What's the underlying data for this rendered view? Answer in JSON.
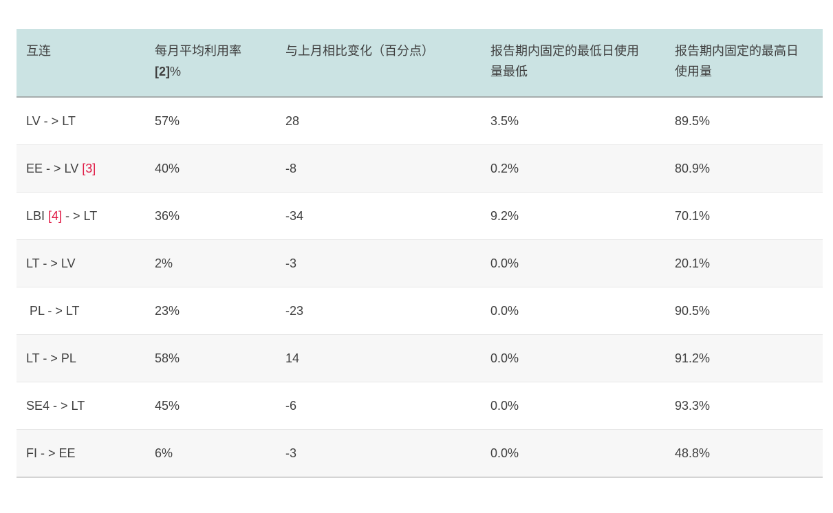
{
  "table": {
    "columns": [
      {
        "key": "interconnection",
        "lines": [
          "互连"
        ]
      },
      {
        "key": "monthly_avg_utilization",
        "lines": [
          "每月平均利用率",
          "[2]%"
        ],
        "bold_fragment": "[2]"
      },
      {
        "key": "change_vs_prev_month",
        "lines": [
          "与上月相比变化（百分点）"
        ]
      },
      {
        "key": "min_daily_usage",
        "lines": [
          "报告期内固定的最低日使用",
          "量最低"
        ]
      },
      {
        "key": "max_daily_usage",
        "lines": [
          "报告期内固定的最高日",
          "使用量"
        ]
      }
    ],
    "rows": [
      {
        "name_parts": [
          {
            "text": "LV - > LT"
          }
        ],
        "monthly_avg_utilization": "57%",
        "change_vs_prev_month": "28",
        "min_daily_usage": "3.5%",
        "max_daily_usage": "89.5%"
      },
      {
        "name_parts": [
          {
            "text": "EE - > LV "
          },
          {
            "text": "[3]",
            "footnote": true
          }
        ],
        "monthly_avg_utilization": "40%",
        "change_vs_prev_month": "-8",
        "min_daily_usage": "0.2%",
        "max_daily_usage": "80.9%"
      },
      {
        "name_parts": [
          {
            "text": "LBI "
          },
          {
            "text": "[4]",
            "footnote": true
          },
          {
            "text": " - > LT"
          }
        ],
        "monthly_avg_utilization": "36%",
        "change_vs_prev_month": "-34",
        "min_daily_usage": "9.2%",
        "max_daily_usage": "70.1%"
      },
      {
        "name_parts": [
          {
            "text": "LT - > LV"
          }
        ],
        "monthly_avg_utilization": "2%",
        "change_vs_prev_month": "-3",
        "min_daily_usage": "0.0%",
        "max_daily_usage": "20.1%"
      },
      {
        "name_parts": [
          {
            "text": " PL - > LT"
          }
        ],
        "monthly_avg_utilization": "23%",
        "change_vs_prev_month": "-23",
        "min_daily_usage": "0.0%",
        "max_daily_usage": "90.5%"
      },
      {
        "name_parts": [
          {
            "text": "LT - > PL"
          }
        ],
        "monthly_avg_utilization": "58%",
        "change_vs_prev_month": "14",
        "min_daily_usage": "0.0%",
        "max_daily_usage": "91.2%"
      },
      {
        "name_parts": [
          {
            "text": "SE4 - > LT"
          }
        ],
        "monthly_avg_utilization": "45%",
        "change_vs_prev_month": "-6",
        "min_daily_usage": "0.0%",
        "max_daily_usage": "93.3%"
      },
      {
        "name_parts": [
          {
            "text": "FI - > EE"
          }
        ],
        "monthly_avg_utilization": "6%",
        "change_vs_prev_month": "-3",
        "min_daily_usage": "0.0%",
        "max_daily_usage": "48.8%"
      }
    ],
    "colors": {
      "header_bg": "#cbe3e3",
      "header_border": "#a6adad",
      "row_alt_bg": "#f7f7f7",
      "row_border": "#e7e7e7",
      "table_bottom_border": "#d4d4d4",
      "text": "#404040",
      "footnote_red": "#e01a45"
    }
  }
}
